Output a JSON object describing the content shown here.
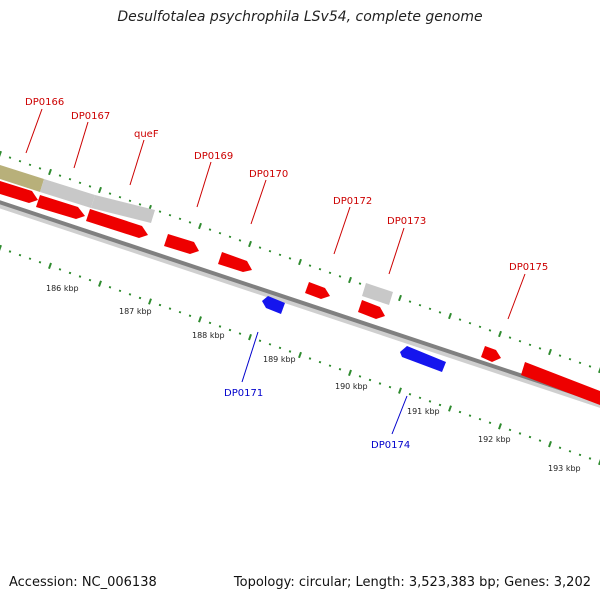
{
  "title": "Desulfotalea psychrophila LSv54, complete genome",
  "footer": {
    "accession": "Accession: NC_006138",
    "summary": "Topology: circular; Length: 3,523,383 bp; Genes: 3,202"
  },
  "colors": {
    "forward_gene": "#ee0000",
    "reverse_gene": "#1515ee",
    "rna_gene": "#c8c8c8",
    "other_feature": "#b8b07a",
    "backbone": "#808080",
    "tick": "#2e8b2e",
    "forward_label": "#cc0000",
    "reverse_label": "#0000cc"
  },
  "scale_labels": [
    "186 kbp",
    "187 kbp",
    "188 kbp",
    "189 kbp",
    "190 kbp",
    "191 kbp",
    "192 kbp",
    "193 kbp"
  ],
  "forward_labels": [
    "DP0166",
    "DP0167",
    "queF",
    "DP0169",
    "DP0170",
    "DP0172",
    "DP0173",
    "DP0175"
  ],
  "reverse_labels": [
    "DP0171",
    "DP0174"
  ]
}
